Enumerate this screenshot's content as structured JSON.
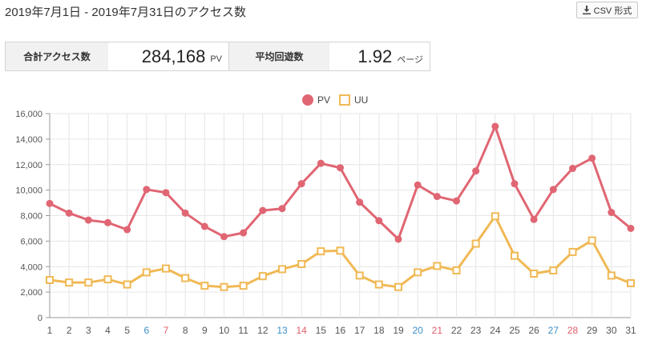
{
  "header": {
    "title": "2019年7月1日 - 2019年7月31日のアクセス数",
    "csv_label": "CSV 形式"
  },
  "summary": {
    "total_label": "合計アクセス数",
    "total_value": "284,168",
    "total_unit": "PV",
    "avg_label": "平均回遊数",
    "avg_value": "1.92",
    "avg_unit": "ページ"
  },
  "colors": {
    "pv": "#e06673",
    "uu": "#f0b955",
    "saturday": "#3b8fc6",
    "sunday": "#e05c6a",
    "grid": "#e6e6e6"
  },
  "chart_data": {
    "type": "line",
    "legend_position": "top",
    "grid": true,
    "ylim": [
      0,
      16000
    ],
    "yticks": [
      "0",
      "2,000",
      "4,000",
      "6,000",
      "8,000",
      "10,000",
      "12,000",
      "14,000",
      "16,000"
    ],
    "x": [
      1,
      2,
      3,
      4,
      5,
      6,
      7,
      8,
      9,
      10,
      11,
      12,
      13,
      14,
      15,
      16,
      17,
      18,
      19,
      20,
      21,
      22,
      23,
      24,
      25,
      26,
      27,
      28,
      29,
      30,
      31
    ],
    "saturdays": [
      6,
      13,
      20,
      27
    ],
    "sundays": [
      7,
      14,
      21,
      28
    ],
    "series": [
      {
        "name": "PV",
        "marker": "circle",
        "values": [
          8950,
          8200,
          7650,
          7450,
          6900,
          10050,
          9800,
          8200,
          7150,
          6350,
          6650,
          8400,
          8550,
          10500,
          12100,
          11750,
          9050,
          7600,
          6150,
          10400,
          9500,
          9150,
          11500,
          15000,
          10500,
          7700,
          10050,
          11700,
          12500,
          8250,
          7000
        ]
      },
      {
        "name": "UU",
        "marker": "square",
        "values": [
          2950,
          2750,
          2750,
          3000,
          2600,
          3550,
          3850,
          3100,
          2500,
          2400,
          2500,
          3250,
          3800,
          4200,
          5200,
          5250,
          3300,
          2600,
          2400,
          3550,
          4050,
          3700,
          5800,
          7950,
          4850,
          3450,
          3700,
          5150,
          6050,
          3300,
          2700
        ]
      }
    ]
  }
}
